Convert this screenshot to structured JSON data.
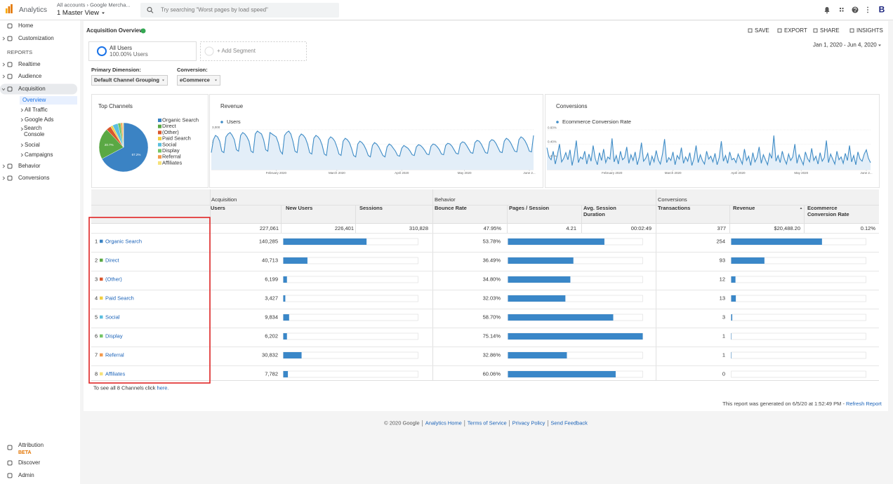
{
  "header": {
    "brand": "Analytics",
    "breadcrumb": "All accounts › Google Mercha...",
    "view": "1 Master View",
    "search_placeholder": "Try searching \"Worst pages by load speed\"",
    "user_initial": "B"
  },
  "nav": {
    "home": "Home",
    "customization": "Customization",
    "reports": "REPORTS",
    "realtime": "Realtime",
    "audience": "Audience",
    "acquisition": "Acquisition",
    "acquisition_sub": [
      "Overview",
      "All Traffic",
      "Google Ads",
      "Search Console",
      "Social",
      "Campaigns"
    ],
    "behavior": "Behavior",
    "conversions": "Conversions",
    "attribution": "Attribution",
    "beta": "BETA",
    "discover": "Discover",
    "admin": "Admin"
  },
  "toolbar": {
    "title": "Acquisition Overview",
    "actions": [
      "SAVE",
      "EXPORT",
      "SHARE",
      "INSIGHTS"
    ]
  },
  "segments": {
    "active_name": "All Users",
    "active_share": "100.00% Users",
    "add": "+ Add Segment"
  },
  "date_range": "Jan 1, 2020 - Jun 4, 2020",
  "controls": {
    "primary_dimension_label": "Primary Dimension:",
    "primary_dimension": "Default Channel Grouping",
    "conversion_label": "Conversion:",
    "conversion": "eCommerce"
  },
  "chart_data": [
    {
      "type": "pie",
      "title": "Top Channels",
      "categories": [
        "Organic Search",
        "Direct",
        "(Other)",
        "Paid Search",
        "Social",
        "Display",
        "Referral",
        "Affiliates"
      ],
      "values": [
        67.2,
        20.7,
        3.2,
        1.5,
        3.6,
        1.9,
        1.2,
        0.7
      ],
      "value_labels": [
        "67.2%",
        "20.7%",
        null,
        null,
        null,
        null,
        null,
        null
      ],
      "colors": [
        "#3b83c4",
        "#5aa844",
        "#d9562c",
        "#f0cf42",
        "#5bbfdf",
        "#74c465",
        "#f39a4c",
        "#f6e27a"
      ]
    },
    {
      "type": "line",
      "title": "Revenue",
      "series": [
        {
          "name": "Users",
          "color": "#3f8cc6",
          "values": [
            1400,
            2300,
            2600,
            2500,
            2200,
            1500,
            1400,
            2500,
            2700,
            2800,
            2600,
            2300,
            1600,
            1500,
            2600,
            2800,
            2700,
            2500,
            2200,
            1500,
            1400,
            2700,
            2900,
            2800,
            2700,
            2300,
            1600,
            1500,
            2800,
            2700,
            2600,
            2500,
            2100,
            1500,
            1300,
            2600,
            2800,
            2900,
            2700,
            2200,
            1500,
            1400,
            2500,
            2700,
            2600,
            2400,
            2000,
            1400,
            1300,
            2400,
            2600,
            2500,
            2300,
            1900,
            1300,
            1200,
            2300,
            2500,
            2400,
            2200,
            1800,
            1300,
            1200,
            2200,
            2400,
            2300,
            2100,
            1700,
            1200,
            1100,
            2000,
            2200,
            2100,
            1900,
            1600,
            1200,
            1100,
            1900,
            2100,
            2000,
            1800,
            1500,
            1200,
            1100,
            1800,
            2000,
            1900,
            1700,
            1500,
            1200,
            1150,
            1700,
            1900,
            1800,
            1700,
            1500,
            1250,
            1200,
            1800,
            1950,
            1900,
            1750,
            1550,
            1300,
            1250,
            1850,
            2000,
            1950,
            1800,
            1600,
            1300,
            1250,
            1900,
            2050,
            2000,
            1850,
            1600,
            1350,
            1300,
            2000,
            2150,
            2100,
            1900,
            1650,
            1400,
            1350,
            2100,
            2250,
            2200,
            2000,
            1700,
            1400,
            1350,
            2150,
            2300,
            2250,
            2050,
            1750,
            1450,
            1400,
            2200,
            2400,
            2300,
            2100,
            1800,
            1500,
            1450,
            2300,
            2500,
            2400,
            2200,
            1900,
            1500,
            1450,
            2600
          ]
        }
      ],
      "xlim": [
        0,
        154
      ],
      "xticks": [
        {
          "value": 31,
          "label": "February 2020"
        },
        {
          "value": 60,
          "label": "March 2020"
        },
        {
          "value": 91,
          "label": "April 2020"
        },
        {
          "value": 121,
          "label": "May 2020"
        },
        {
          "value": 152,
          "label": "June 2..."
        }
      ],
      "ylim": [
        200,
        3240
      ],
      "yticks": [
        {
          "value": 1000,
          "label": "1,000"
        },
        {
          "value": 2000,
          "label": "2,000"
        },
        {
          "value": 3000,
          "label": "3,000"
        }
      ],
      "grid": true
    },
    {
      "type": "line",
      "title": "Conversions",
      "series": [
        {
          "name": "Ecommerce Conversion Rate",
          "color": "#3f8cc6",
          "values": [
            0.35,
            0.22,
            0.18,
            0.3,
            0.12,
            0.25,
            0.4,
            0.15,
            0.2,
            0.28,
            0.18,
            0.32,
            0.1,
            0.24,
            0.45,
            0.14,
            0.22,
            0.19,
            0.3,
            0.12,
            0.26,
            0.16,
            0.38,
            0.2,
            0.11,
            0.28,
            0.17,
            0.33,
            0.14,
            0.22,
            0.19,
            0.48,
            0.15,
            0.24,
            0.12,
            0.3,
            0.18,
            0.21,
            0.36,
            0.13,
            0.25,
            0.17,
            0.29,
            0.11,
            0.22,
            0.42,
            0.16,
            0.2,
            0.27,
            0.1,
            0.23,
            0.15,
            0.31,
            0.18,
            0.12,
            0.26,
            0.47,
            0.14,
            0.21,
            0.17,
            0.29,
            0.11,
            0.24,
            0.19,
            0.35,
            0.13,
            0.22,
            0.16,
            0.28,
            0.1,
            0.2,
            0.38,
            0.14,
            0.25,
            0.17,
            0.12,
            0.3,
            0.19,
            0.23,
            0.15,
            0.27,
            0.11,
            0.21,
            0.44,
            0.16,
            0.24,
            0.13,
            0.29,
            0.18,
            0.2,
            0.14,
            0.26,
            0.19,
            0.12,
            0.33,
            0.17,
            0.23,
            0.1,
            0.28,
            0.15,
            0.21,
            0.36,
            0.13,
            0.25,
            0.18,
            0.11,
            0.27,
            0.2,
            0.52,
            0.16,
            0.24,
            0.14,
            0.3,
            0.19,
            0.12,
            0.26,
            0.17,
            0.22,
            0.4,
            0.13,
            0.25,
            0.18,
            0.11,
            0.29,
            0.2,
            0.15,
            0.34,
            0.17,
            0.23,
            0.12,
            0.28,
            0.16,
            0.21,
            0.45,
            0.14,
            0.26,
            0.19,
            0.12,
            0.3,
            0.18,
            0.22,
            0.13,
            0.27,
            0.17,
            0.38,
            0.15,
            0.24,
            0.11,
            0.29,
            0.19,
            0.16,
            0.26,
            0.32,
            0.2,
            0.14
          ]
        }
      ],
      "xlim": [
        0,
        154
      ],
      "xticks": [
        {
          "value": 31,
          "label": "February 2020"
        },
        {
          "value": 60,
          "label": "March 2020"
        },
        {
          "value": 91,
          "label": "April 2020"
        },
        {
          "value": 121,
          "label": "May 2020"
        },
        {
          "value": 152,
          "label": "June 2..."
        }
      ],
      "ylim": [
        0.04,
        0.65
      ],
      "yticks": [
        {
          "value": 0.2,
          "label": "0.20%"
        },
        {
          "value": 0.4,
          "label": "0.40%"
        },
        {
          "value": 0.6,
          "label": "0.60%"
        }
      ],
      "grid": true
    }
  ],
  "table": {
    "groups": [
      "Acquisition",
      "Behavior",
      "Conversions"
    ],
    "columns": [
      "Users",
      "New Users",
      "Sessions",
      "Bounce Rate",
      "Pages / Session",
      "Avg. Session Duration",
      "Transactions",
      "Revenue",
      "Ecommerce Conversion Rate"
    ],
    "totals": [
      {
        "value": 227061,
        "label": "227,061"
      },
      {
        "value": 226401,
        "label": "226,401"
      },
      {
        "value": 310828,
        "label": "310,828"
      },
      {
        "value": 47.95,
        "label": "47.95%"
      },
      4.21,
      "00:02:49",
      377,
      {
        "value": 20488.2,
        "label": "$20,488.20"
      },
      {
        "value": 0.12,
        "label": "0.12%"
      }
    ],
    "rows": [
      {
        "rank": 1,
        "channel": "Organic Search",
        "users": {
          "value": 140285,
          "label": "140,285"
        },
        "bounce_rate": {
          "value": 53.78,
          "label": "53.78%"
        },
        "transactions": 254
      },
      {
        "rank": 2,
        "channel": "Direct",
        "users": {
          "value": 40713,
          "label": "40,713"
        },
        "bounce_rate": {
          "value": 36.49,
          "label": "36.49%"
        },
        "transactions": 93
      },
      {
        "rank": 3,
        "channel": "(Other)",
        "users": {
          "value": 6199,
          "label": "6,199"
        },
        "bounce_rate": {
          "value": 34.8,
          "label": "34.80%"
        },
        "transactions": 12
      },
      {
        "rank": 4,
        "channel": "Paid Search",
        "users": {
          "value": 3427,
          "label": "3,427"
        },
        "bounce_rate": {
          "value": 32.03,
          "label": "32.03%"
        },
        "transactions": 13
      },
      {
        "rank": 5,
        "channel": "Social",
        "users": {
          "value": 9834,
          "label": "9,834"
        },
        "bounce_rate": {
          "value": 58.7,
          "label": "58.70%"
        },
        "transactions": 3
      },
      {
        "rank": 6,
        "channel": "Display",
        "users": {
          "value": 6202,
          "label": "6,202"
        },
        "bounce_rate": {
          "value": 75.14,
          "label": "75.14%"
        },
        "transactions": 1
      },
      {
        "rank": 7,
        "channel": "Referral",
        "users": {
          "value": 30832,
          "label": "30,832"
        },
        "bounce_rate": {
          "value": 32.86,
          "label": "32.86%"
        },
        "transactions": 1
      },
      {
        "rank": 8,
        "channel": "Affiliates",
        "users": {
          "value": 7782,
          "label": "7,782"
        },
        "bounce_rate": {
          "value": 60.06,
          "label": "60.06%"
        },
        "transactions": 0
      }
    ],
    "note": "To see all 8 Channels click ",
    "note_link": "here."
  },
  "report": {
    "generated": "This report was generated on 6/5/20 at 1:52:49 PM - ",
    "refresh": "Refresh Report"
  },
  "footer": [
    "© 2020 Google",
    "Analytics Home",
    "Terms of Service",
    "Privacy Policy",
    "Send Feedback"
  ]
}
